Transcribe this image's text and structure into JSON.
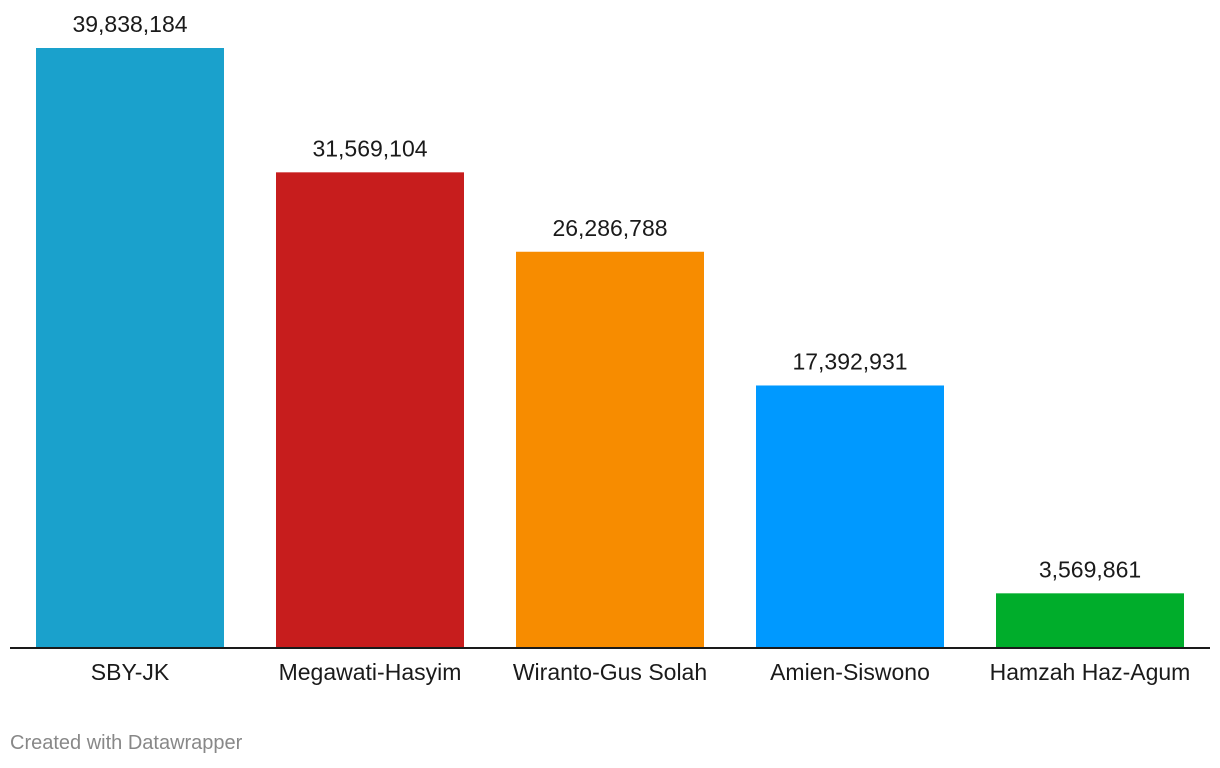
{
  "chart_data": {
    "type": "bar",
    "title": "",
    "xlabel": "",
    "ylabel": "",
    "categories": [
      "SBY-JK",
      "Megawati-Hasyim",
      "Wiranto-Gus Solah",
      "Amien-Siswono",
      "Hamzah Haz-Agum"
    ],
    "values": [
      39838184,
      31569104,
      26286788,
      17392931,
      3569861
    ],
    "value_labels": [
      "39,838,184",
      "31,569,104",
      "26,286,788",
      "17,392,931",
      "3,569,861"
    ],
    "colors": [
      "#1aa1cc",
      "#c71d1d",
      "#f78c00",
      "#0099ff",
      "#00ad2b"
    ],
    "ylim": [
      0,
      39838184
    ],
    "grid": false,
    "legend": "none"
  },
  "footer": {
    "credit": "Created with Datawrapper"
  }
}
